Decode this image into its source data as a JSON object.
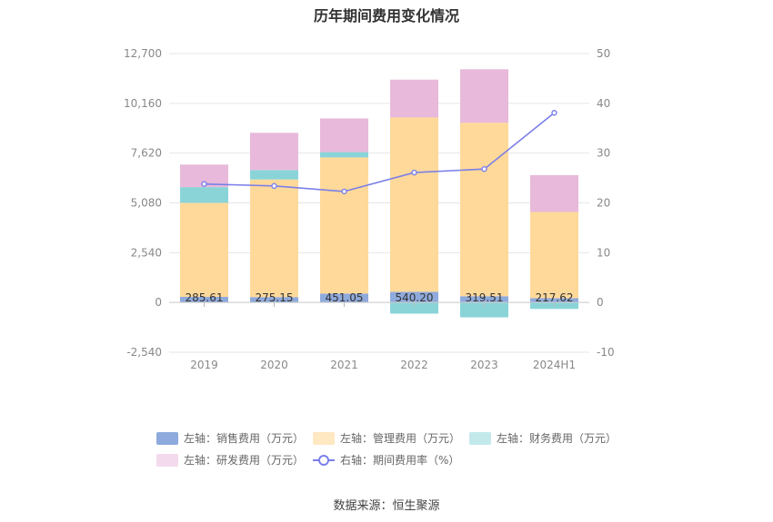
{
  "chart_data": {
    "type": "bar",
    "title": "历年期间费用变化情况",
    "categories": [
      "2019",
      "2020",
      "2021",
      "2022",
      "2023",
      "2024H1"
    ],
    "left_axis": {
      "ylim": [
        -2540,
        12700
      ],
      "ticks": [
        "12,700",
        "10,160",
        "7,620",
        "5,080",
        "2,540",
        "0",
        "-2,540"
      ],
      "tick_values": [
        12700,
        10160,
        7620,
        5080,
        2540,
        0,
        -2540
      ]
    },
    "right_axis": {
      "ylim": [
        -10,
        50
      ],
      "ticks": [
        "50",
        "40",
        "30",
        "20",
        "10",
        "0",
        "-10"
      ],
      "tick_values": [
        50,
        40,
        30,
        20,
        10,
        0,
        -10
      ]
    },
    "series": [
      {
        "name": "左轴：销售费用（万元）",
        "kind": "bar",
        "axis": "left",
        "color": "#8FAADC",
        "values": [
          285.61,
          275.15,
          451.05,
          540.2,
          319.51,
          217.62
        ],
        "labels": [
          "285.61",
          "275.15",
          "451.05",
          "540.20",
          "319.51",
          "217.62"
        ]
      },
      {
        "name": "左轴：管理费用（万元）",
        "kind": "bar",
        "axis": "left",
        "color": "#FFD99A",
        "values": [
          4800,
          6000,
          6950,
          8900,
          8850,
          4400
        ]
      },
      {
        "name": "左轴：财务费用（万元）",
        "kind": "bar",
        "axis": "left",
        "color": "#8AD4D8",
        "values": [
          800,
          480,
          270,
          -570,
          -760,
          -330
        ]
      },
      {
        "name": "左轴：研发费用（万元）",
        "kind": "bar",
        "axis": "left",
        "color": "#E8B9DA",
        "values": [
          1150,
          1900,
          1720,
          1930,
          2730,
          1880
        ]
      },
      {
        "name": "右轴：期间费用率（%）",
        "kind": "line",
        "axis": "right",
        "color": "#7B7FE8",
        "values": [
          23.8,
          23.4,
          22.3,
          26.1,
          26.8,
          38.1
        ]
      }
    ],
    "legend_position": "bottom",
    "grid": true
  },
  "source_text": "数据来源：恒生聚源"
}
